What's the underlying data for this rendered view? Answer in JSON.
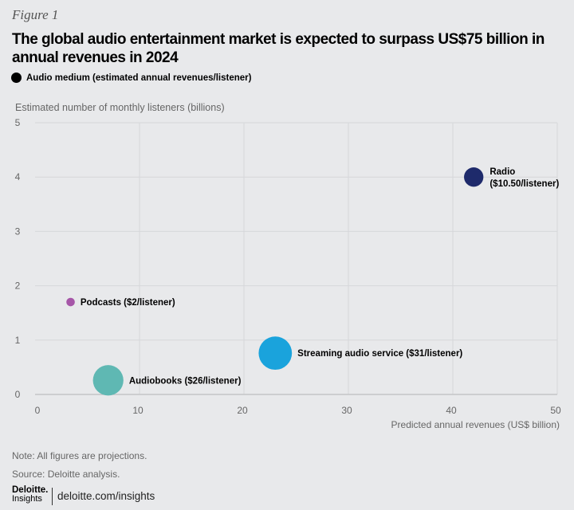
{
  "figure_label": "Figure 1",
  "footer": {
    "note": "Note: All figures are projections.",
    "source": "Source: Deloitte analysis.",
    "logo_top": "Deloitte.",
    "logo_bottom": "Insights",
    "url": "deloitte.com/insights"
  },
  "chart_data": {
    "type": "scatter",
    "title": "The global audio entertainment market is expected to surpass US$75 billion in annual revenues in 2024",
    "legend": "Audio medium (estimated annual revenues/listener)",
    "xlabel": "Predicted annual revenues (US$ billion)",
    "ylabel": "Estimated number of monthly listeners (billions)",
    "xlim": [
      0,
      50
    ],
    "ylim": [
      0,
      5
    ],
    "xticks": [
      0,
      10,
      20,
      30,
      40,
      50
    ],
    "yticks": [
      0,
      1,
      2,
      3,
      4,
      5
    ],
    "grid": true,
    "points": [
      {
        "label": "Podcasts ($2/listener)",
        "x": 3.4,
        "y": 1.7,
        "size": 2,
        "color": "#a656a8"
      },
      {
        "label": "Audiobooks ($26/listener)",
        "x": 7,
        "y": 0.26,
        "size": 26,
        "color": "#5fb8b3"
      },
      {
        "label": "Streaming audio service ($31/listener)",
        "x": 23,
        "y": 0.76,
        "size": 31,
        "color": "#1aa3dc"
      },
      {
        "label_lines": [
          "Radio",
          "($10.50/listener)"
        ],
        "x": 42,
        "y": 4,
        "size": 10.5,
        "color": "#1e2a6b"
      }
    ]
  }
}
